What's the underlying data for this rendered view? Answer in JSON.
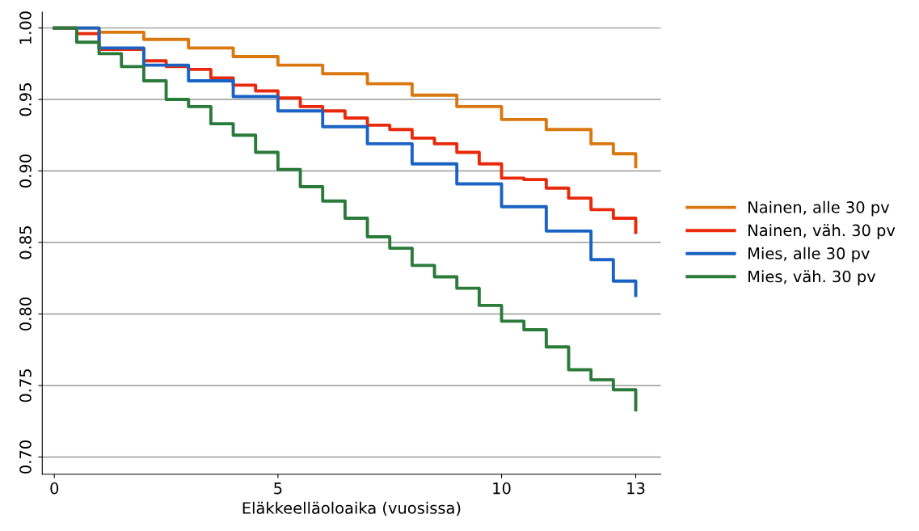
{
  "chart_data": {
    "type": "step",
    "xlabel": "Eläkkeelläoloaika (vuosissa)",
    "xlim": [
      -0.27,
      13.56
    ],
    "ylim": [
      0.688,
      1.011
    ],
    "xticks": [
      0,
      5,
      10,
      13
    ],
    "yticks": [
      {
        "value": 0.7,
        "label": "0.70"
      },
      {
        "value": 0.75,
        "label": "0.75"
      },
      {
        "value": 0.8,
        "label": "0.80"
      },
      {
        "value": 0.85,
        "label": "0.85"
      },
      {
        "value": 0.9,
        "label": "0.90"
      },
      {
        "value": 0.95,
        "label": "0.95"
      },
      {
        "value": 1.0,
        "label": "1.00"
      }
    ],
    "grid": "y",
    "legend": "right",
    "line_style": "solid",
    "marker": "none",
    "series": [
      {
        "name": "Nainen, alle 30 pv",
        "color": "#d9780f",
        "x": [
          0,
          1,
          2,
          3,
          4,
          5,
          6,
          7,
          8,
          9,
          10,
          11,
          12,
          12.5,
          13
        ],
        "values": [
          1.0,
          0.997,
          0.992,
          0.986,
          0.98,
          0.974,
          0.968,
          0.961,
          0.953,
          0.945,
          0.936,
          0.929,
          0.919,
          0.912,
          0.903
        ]
      },
      {
        "name": "Nainen, väh. 30 pv",
        "color": "#e8290b",
        "x": [
          0,
          0.5,
          1,
          2,
          2.5,
          3,
          3.5,
          4,
          4.5,
          5,
          5.5,
          6,
          6.5,
          7,
          7.5,
          8,
          8.5,
          9,
          9.5,
          10,
          10.5,
          11,
          11.5,
          12,
          12.5,
          13
        ],
        "values": [
          1.0,
          0.996,
          0.985,
          0.977,
          0.973,
          0.971,
          0.965,
          0.96,
          0.956,
          0.951,
          0.945,
          0.942,
          0.937,
          0.932,
          0.929,
          0.923,
          0.919,
          0.913,
          0.905,
          0.895,
          0.894,
          0.888,
          0.881,
          0.873,
          0.867,
          0.857
        ]
      },
      {
        "name": "Mies, alle 30 pv",
        "color": "#1a63c4",
        "x": [
          0,
          1,
          2,
          3,
          4,
          5,
          6,
          7,
          8,
          9,
          10,
          11,
          12,
          12.5,
          13
        ],
        "values": [
          1.0,
          0.986,
          0.974,
          0.963,
          0.952,
          0.942,
          0.931,
          0.919,
          0.905,
          0.891,
          0.875,
          0.858,
          0.838,
          0.823,
          0.813
        ]
      },
      {
        "name": "Mies, väh. 30 pv",
        "color": "#2a7a3a",
        "x": [
          0,
          0.5,
          1,
          1.5,
          2,
          2.5,
          3,
          3.5,
          4,
          4.5,
          5,
          5.5,
          6,
          6.5,
          7,
          7.5,
          8,
          8.5,
          9,
          9.5,
          10,
          10.5,
          11,
          11.5,
          12,
          12.5,
          13
        ],
        "values": [
          1.0,
          0.99,
          0.982,
          0.973,
          0.963,
          0.95,
          0.945,
          0.933,
          0.925,
          0.913,
          0.901,
          0.889,
          0.879,
          0.867,
          0.854,
          0.846,
          0.834,
          0.826,
          0.818,
          0.806,
          0.795,
          0.789,
          0.777,
          0.761,
          0.754,
          0.747,
          0.733
        ]
      }
    ]
  }
}
